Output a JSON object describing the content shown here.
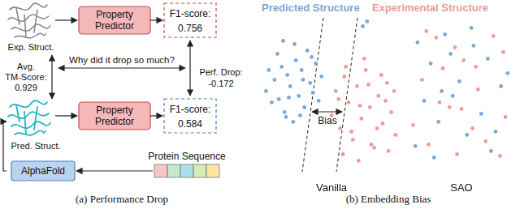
{
  "panel_a": {
    "caption": "(a) Performance Drop",
    "experimental": {
      "label": "Exp. Struct.",
      "predictor": "Property Predictor",
      "metric": "F1-score:",
      "score": 0.756
    },
    "predicted": {
      "label": "Pred. Struct.",
      "predictor": "Property Predictor",
      "metric": "F1-score:",
      "score": 0.584
    },
    "tm_score": {
      "label": "Avg. TM-Score:",
      "value": 0.929
    },
    "question": "Why did it drop so much?",
    "drop": {
      "label": "Perf. Drop:",
      "value": -0.172
    },
    "model": "AlphaFold",
    "sequence_label": "Protein Sequence"
  },
  "panel_b": {
    "caption": "(b) Embedding Bias",
    "annotation": "Bias"
  },
  "chart_data": [
    {
      "type": "scatter",
      "title": "Vanilla",
      "xlim": [
        0,
        10
      ],
      "ylim": [
        0,
        10
      ],
      "tick_labels": false,
      "grid": false,
      "series": [
        {
          "name": "Predicted Structure",
          "color": "#7ba7d9",
          "x": [
            0.4,
            0.8,
            1.0,
            1.3,
            1.5,
            1.7,
            1.9,
            2.1,
            2.3,
            2.5,
            2.7,
            2.9,
            3.1,
            3.3,
            3.5,
            3.7,
            3.9,
            4.1,
            0.6,
            1.2,
            1.8,
            2.4,
            3.0,
            3.6,
            4.3,
            2.0,
            2.8,
            1.6,
            7.2,
            7.5
          ],
          "values": [
            5.5,
            4.8,
            6.2,
            5.0,
            7.0,
            4.2,
            6.5,
            5.8,
            3.6,
            7.4,
            5.2,
            6.8,
            4.5,
            8.0,
            6.0,
            5.4,
            7.2,
            4.9,
            6.8,
            7.8,
            3.9,
            8.4,
            6.2,
            7.6,
            6.4,
            5.1,
            4.0,
            8.6,
            9.5,
            9.8
          ]
        },
        {
          "name": "Experimental Structure",
          "color": "#f09a9a",
          "x": [
            5.0,
            5.3,
            5.6,
            5.9,
            6.2,
            6.5,
            6.8,
            7.1,
            7.4,
            7.7,
            8.0,
            8.3,
            8.6,
            8.9,
            9.2,
            9.5,
            5.8,
            6.4,
            7.0,
            7.6,
            8.2,
            8.8,
            9.4,
            6.0,
            6.9,
            7.8,
            8.5,
            5.5,
            7.3,
            9.0
          ],
          "values": [
            4.0,
            5.5,
            3.2,
            6.4,
            4.8,
            2.5,
            5.8,
            3.8,
            6.8,
            4.5,
            2.0,
            5.2,
            3.5,
            6.0,
            4.2,
            2.8,
            1.6,
            3.0,
            4.6,
            5.9,
            3.2,
            4.9,
            5.5,
            7.0,
            1.2,
            2.2,
            6.5,
            5.0,
            7.5,
            1.8
          ]
        }
      ]
    },
    {
      "type": "scatter",
      "title": "SAO",
      "xlim": [
        0,
        10
      ],
      "ylim": [
        0,
        10
      ],
      "tick_labels": false,
      "grid": false,
      "series": [
        {
          "color": "#7ba7d9",
          "x": [
            1.0,
            2.2,
            3.5,
            4.8,
            6.1,
            7.4,
            8.6,
            1.6,
            2.9,
            4.2,
            5.5,
            6.8,
            8.1,
            9.2,
            0.8,
            2.5,
            4.0,
            5.9,
            7.7,
            3.2
          ],
          "values": [
            8.5,
            7.2,
            9.0,
            6.1,
            8.3,
            7.5,
            5.8,
            4.9,
            3.6,
            5.2,
            2.8,
            4.1,
            3.0,
            6.6,
            2.1,
            1.4,
            7.8,
            9.4,
            1.8,
            5.5
          ]
        },
        {
          "color": "#f09a9a",
          "x": [
            1.4,
            2.7,
            3.9,
            5.2,
            6.5,
            7.9,
            9.0,
            0.6,
            2.0,
            3.3,
            4.6,
            6.0,
            7.2,
            8.5,
            1.8,
            3.0,
            5.0,
            6.3,
            8.8,
            4.4
          ],
          "values": [
            6.2,
            8.8,
            4.5,
            7.4,
            5.6,
            8.9,
            3.9,
            3.4,
            2.2,
            6.9,
            1.6,
            3.2,
            2.4,
            1.5,
            9.2,
            4.8,
            4.4,
            7.0,
            7.9,
            8.2
          ]
        }
      ]
    }
  ]
}
